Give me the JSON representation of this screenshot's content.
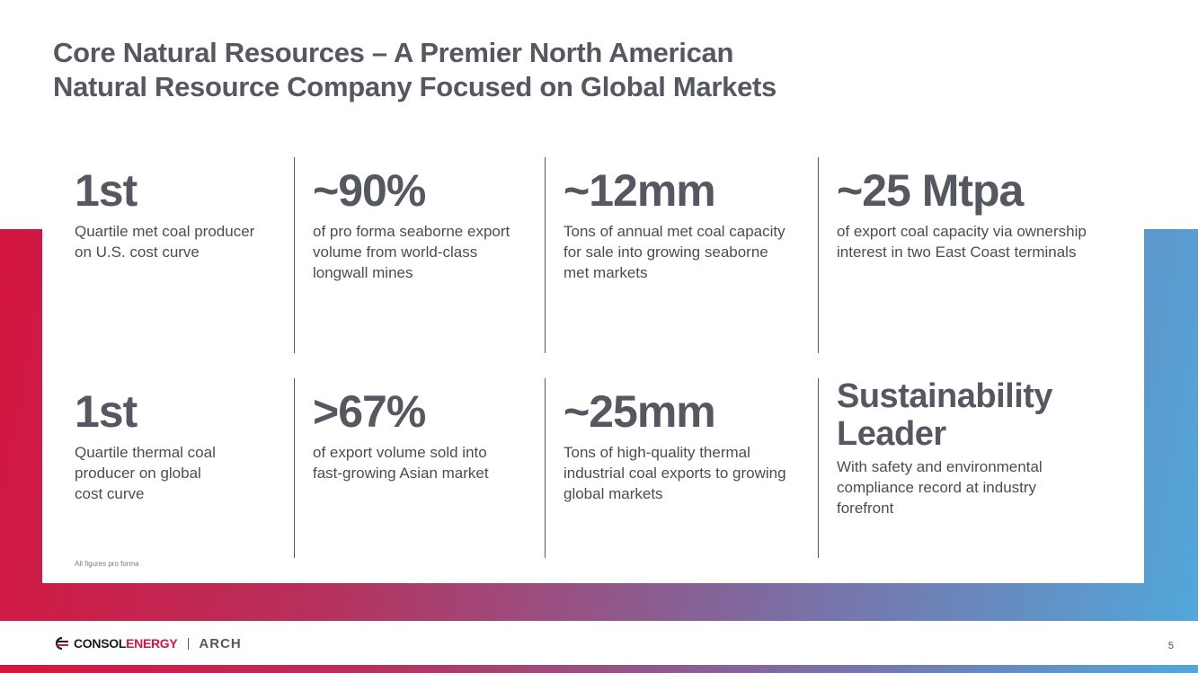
{
  "title": {
    "line1": "Core Natural Resources – A Premier North American",
    "line2": "Natural Resource Company Focused on Global Markets"
  },
  "stats": [
    {
      "big": "1st",
      "desc": [
        "Quartile met coal producer",
        "on U.S. cost curve"
      ]
    },
    {
      "big": "~90%",
      "desc": [
        "of pro forma seaborne export",
        "volume from world-class",
        "longwall mines"
      ]
    },
    {
      "big": "~12mm",
      "desc": [
        "Tons of annual met coal capacity",
        "for sale into growing seaborne",
        "met markets"
      ]
    },
    {
      "big": "~25 Mtpa",
      "desc": [
        "of export coal capacity via ownership",
        "interest in two East Coast terminals"
      ]
    },
    {
      "big": "1st",
      "desc": [
        "Quartile thermal coal",
        "producer on global",
        "cost curve"
      ]
    },
    {
      "big": ">67%",
      "desc": [
        "of export volume sold into",
        "fast-growing Asian market"
      ]
    },
    {
      "big": "~25mm",
      "desc": [
        "Tons of high-quality thermal",
        "industrial coal exports to growing",
        "global markets"
      ]
    },
    {
      "big": [
        "Sustainability",
        "Leader"
      ],
      "desc": [
        "With safety and environmental",
        "compliance record at industry",
        "forefront"
      ]
    }
  ],
  "footnote": "All figures pro forma",
  "footer": {
    "consol_prefix": "CONSOL",
    "consol_suffix": "ENERGY",
    "arch": "ARCH",
    "page_number": "5"
  },
  "colors": {
    "accent_red": "#d4153f",
    "accent_blue": "#51a7db",
    "heading_gray": "#555860"
  },
  "icons": {
    "consol_logo": "consol-energy-logo-icon"
  }
}
